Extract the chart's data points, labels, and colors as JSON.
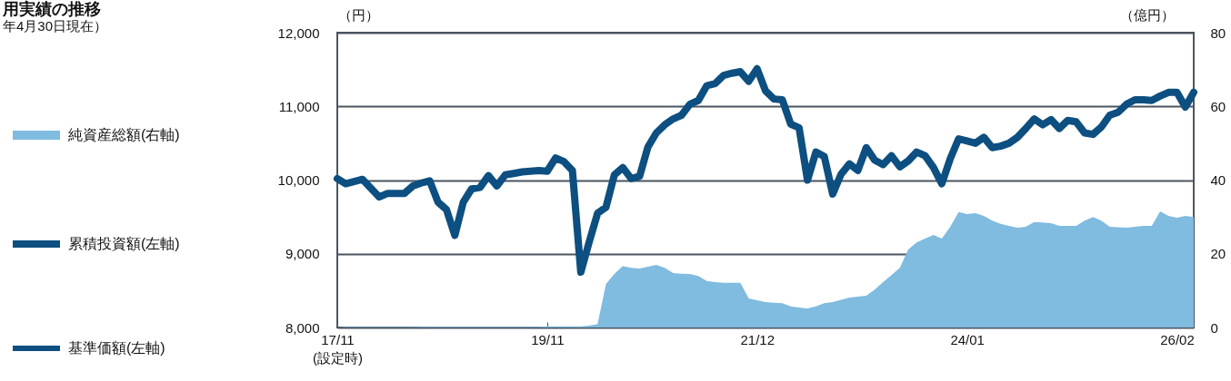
{
  "chart_data": {
    "type": "line",
    "title": "用実績の推移",
    "subtitle": "年4月30日現在）",
    "ylabel": "（円）",
    "y2label": "（億円）",
    "categories": [
      "17/11\n(設定時)",
      null,
      null,
      null,
      null,
      null,
      null,
      null,
      null,
      null,
      null,
      null,
      null,
      null,
      null,
      null,
      null,
      null,
      null,
      null,
      null,
      null,
      null,
      null,
      null,
      "19/11",
      null,
      null,
      null,
      null,
      null,
      null,
      null,
      null,
      null,
      null,
      null,
      null,
      null,
      null,
      null,
      null,
      null,
      null,
      null,
      null,
      null,
      null,
      null,
      null,
      "21/12",
      null,
      null,
      null,
      null,
      null,
      null,
      null,
      null,
      null,
      null,
      null,
      null,
      null,
      null,
      null,
      null,
      null,
      null,
      null,
      null,
      null,
      null,
      null,
      null,
      "24/01",
      null,
      null,
      null,
      null,
      null,
      null,
      null,
      null,
      null,
      null,
      null,
      null,
      null,
      null,
      null,
      null,
      null,
      null,
      null,
      null,
      null,
      null,
      null,
      null,
      "26/02",
      null,
      null
    ],
    "ylim": [
      8000,
      12000
    ],
    "yticks": [
      {
        "value": 8000,
        "label": "8,000"
      },
      {
        "value": 9000,
        "label": "9,000"
      },
      {
        "value": 10000,
        "label": "10,000"
      },
      {
        "value": 11000,
        "label": "11,000"
      },
      {
        "value": 12000,
        "label": "12,000"
      }
    ],
    "y2lim": [
      0,
      80
    ],
    "y2ticks": [
      0,
      20,
      40,
      60,
      80
    ],
    "grid": "y",
    "legend": "left",
    "series": [
      {
        "name": "純資産総額(右軸)",
        "type": "area",
        "axis": "y2",
        "color": "#80bbe0",
        "values": [
          0,
          0.1,
          0.1,
          0.1,
          0.1,
          0.1,
          0.1,
          0.1,
          0.1,
          0.1,
          0.2,
          0.2,
          0.2,
          0.2,
          0.2,
          0.2,
          0.2,
          0.2,
          0.2,
          0.2,
          0.2,
          0.2,
          0.2,
          0.2,
          0.2,
          0.3,
          0.3,
          0.3,
          0.3,
          0.3,
          0.5,
          0.9,
          11.8,
          14.5,
          16.7,
          16.2,
          16.0,
          16.5,
          17.0,
          16.2,
          14.8,
          14.6,
          14.5,
          14.0,
          12.6,
          12.3,
          12.1,
          12.1,
          12.1,
          7.9,
          7.4,
          6.9,
          6.7,
          6.6,
          5.7,
          5.4,
          5.2,
          5.7,
          6.6,
          6.9,
          7.5,
          8.1,
          8.4,
          8.6,
          10.3,
          12.3,
          14.2,
          16.2,
          21.2,
          23.1,
          24.1,
          25.1,
          24.1,
          27.3,
          31.3,
          30.8,
          31.0,
          30.3,
          29.0,
          28.1,
          27.6,
          27.1,
          27.3,
          28.6,
          28.5,
          28.3,
          27.6,
          27.6,
          27.6,
          29.0,
          30.0,
          29.0,
          27.3,
          27.2,
          27.1,
          27.3,
          27.6,
          27.6,
          31.5,
          30.3,
          29.8,
          30.3,
          30.0
        ]
      },
      {
        "name": "累積投資額(左軸)",
        "color": "#0d4f80",
        "values": [
          10020,
          9950,
          9980,
          10010,
          9890,
          9770,
          9820,
          9820,
          9820,
          9920,
          9960,
          9990,
          9700,
          9600,
          9250,
          9700,
          9880,
          9900,
          10060,
          9920,
          10070,
          10090,
          10110,
          10120,
          10130,
          10120,
          10300,
          10250,
          10130,
          8750,
          9160,
          9550,
          9630,
          10070,
          10170,
          10020,
          10050,
          10450,
          10640,
          10750,
          10830,
          10880,
          11030,
          11080,
          11280,
          11310,
          11420,
          11450,
          11470,
          11340,
          11510,
          11210,
          11100,
          11090,
          10760,
          10710,
          10000,
          10380,
          10320,
          9810,
          10080,
          10220,
          10130,
          10440,
          10270,
          10210,
          10330,
          10180,
          10260,
          10380,
          10330,
          10170,
          9950,
          10290,
          10560,
          10530,
          10500,
          10580,
          10440,
          10460,
          10500,
          10580,
          10700,
          10830,
          10750,
          10820,
          10700,
          10810,
          10790,
          10640,
          10620,
          10720,
          10880,
          10920,
          11030,
          11090,
          11090,
          11080,
          11140,
          11190,
          11190,
          10990,
          11190
        ]
      },
      {
        "name": "基準価額(左軸)",
        "color": "#0d4f80",
        "values": [
          null,
          null,
          null,
          null,
          null,
          null,
          null,
          null,
          null,
          null,
          null,
          null,
          null,
          null,
          null,
          null,
          null,
          null,
          null,
          null,
          null,
          null,
          null,
          null,
          null,
          null,
          null,
          null,
          null,
          null,
          null,
          null,
          null,
          null,
          null,
          null,
          null,
          null,
          null,
          null,
          null,
          null,
          null,
          null,
          null,
          null,
          null,
          null,
          null,
          null,
          null,
          null,
          null,
          null,
          null,
          null,
          null,
          null,
          null,
          null,
          null,
          null,
          null,
          null,
          null,
          null,
          null,
          null,
          null,
          null,
          null,
          null,
          null,
          null,
          null,
          null,
          null,
          null,
          null,
          null,
          null,
          null,
          null,
          null,
          null,
          null,
          null,
          null,
          null,
          null,
          null,
          null,
          null,
          null,
          null,
          null,
          null,
          null,
          null,
          null,
          null,
          null,
          null
        ]
      }
    ]
  }
}
